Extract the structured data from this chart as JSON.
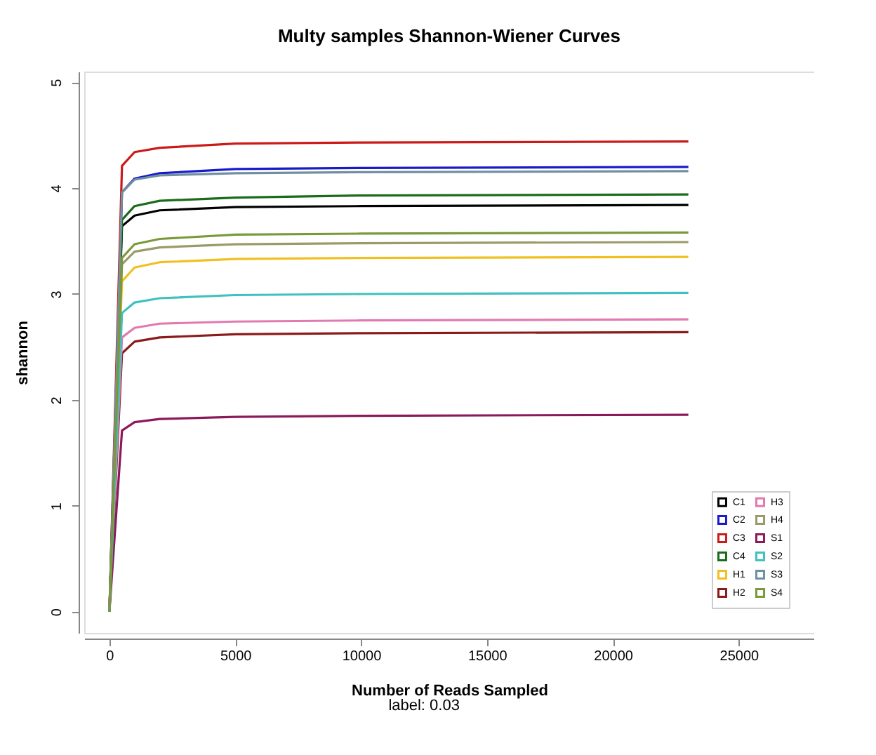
{
  "chart_data": {
    "type": "line",
    "title": "Multy samples Shannon-Wiener Curves",
    "xlabel": "Number of Reads Sampled",
    "ylabel": "shannon",
    "annotations": [
      "label: 0.03"
    ],
    "x": [
      0,
      500,
      1000,
      2000,
      5000,
      10000,
      23000
    ],
    "series": [
      {
        "name": "C1",
        "color": "#000000",
        "values": [
          0,
          3.64,
          3.74,
          3.79,
          3.82,
          3.83,
          3.84
        ]
      },
      {
        "name": "C2",
        "color": "#1a1acc",
        "values": [
          0,
          3.96,
          4.09,
          4.14,
          4.18,
          4.19,
          4.2
        ]
      },
      {
        "name": "C3",
        "color": "#cc1a1a",
        "values": [
          0,
          4.21,
          4.34,
          4.38,
          4.42,
          4.43,
          4.44
        ]
      },
      {
        "name": "C4",
        "color": "#1a6b1a",
        "values": [
          0,
          3.7,
          3.83,
          3.88,
          3.91,
          3.93,
          3.94
        ]
      },
      {
        "name": "H1",
        "color": "#f0c020",
        "values": [
          0,
          3.12,
          3.25,
          3.3,
          3.33,
          3.34,
          3.35
        ]
      },
      {
        "name": "H2",
        "color": "#8b1a1a",
        "values": [
          0,
          2.44,
          2.55,
          2.59,
          2.62,
          2.63,
          2.64
        ]
      },
      {
        "name": "H3",
        "color": "#e07ab0",
        "values": [
          0,
          2.59,
          2.68,
          2.72,
          2.74,
          2.75,
          2.76
        ]
      },
      {
        "name": "H4",
        "color": "#9a9a6a",
        "values": [
          0,
          3.28,
          3.4,
          3.44,
          3.47,
          3.48,
          3.49
        ]
      },
      {
        "name": "S1",
        "color": "#8b1a5a",
        "values": [
          0,
          1.71,
          1.79,
          1.82,
          1.84,
          1.85,
          1.86
        ]
      },
      {
        "name": "S2",
        "color": "#40c0c0",
        "values": [
          0,
          2.82,
          2.92,
          2.96,
          2.99,
          3.0,
          3.01
        ]
      },
      {
        "name": "S3",
        "color": "#7090a0",
        "values": [
          0,
          3.96,
          4.08,
          4.12,
          4.14,
          4.15,
          4.16
        ]
      },
      {
        "name": "S4",
        "color": "#7a9a3a",
        "values": [
          0,
          3.34,
          3.47,
          3.52,
          3.56,
          3.57,
          3.58
        ]
      }
    ],
    "xlim": [
      -1000,
      28000
    ],
    "xticks": [
      0,
      5000,
      10000,
      15000,
      20000,
      25000
    ],
    "ylim": [
      -0.2,
      5.1
    ],
    "yticks": [
      0,
      1,
      2,
      3,
      4,
      5
    ],
    "grid": false,
    "legend": "bottom right",
    "marker": "none",
    "line_style": "solid"
  }
}
